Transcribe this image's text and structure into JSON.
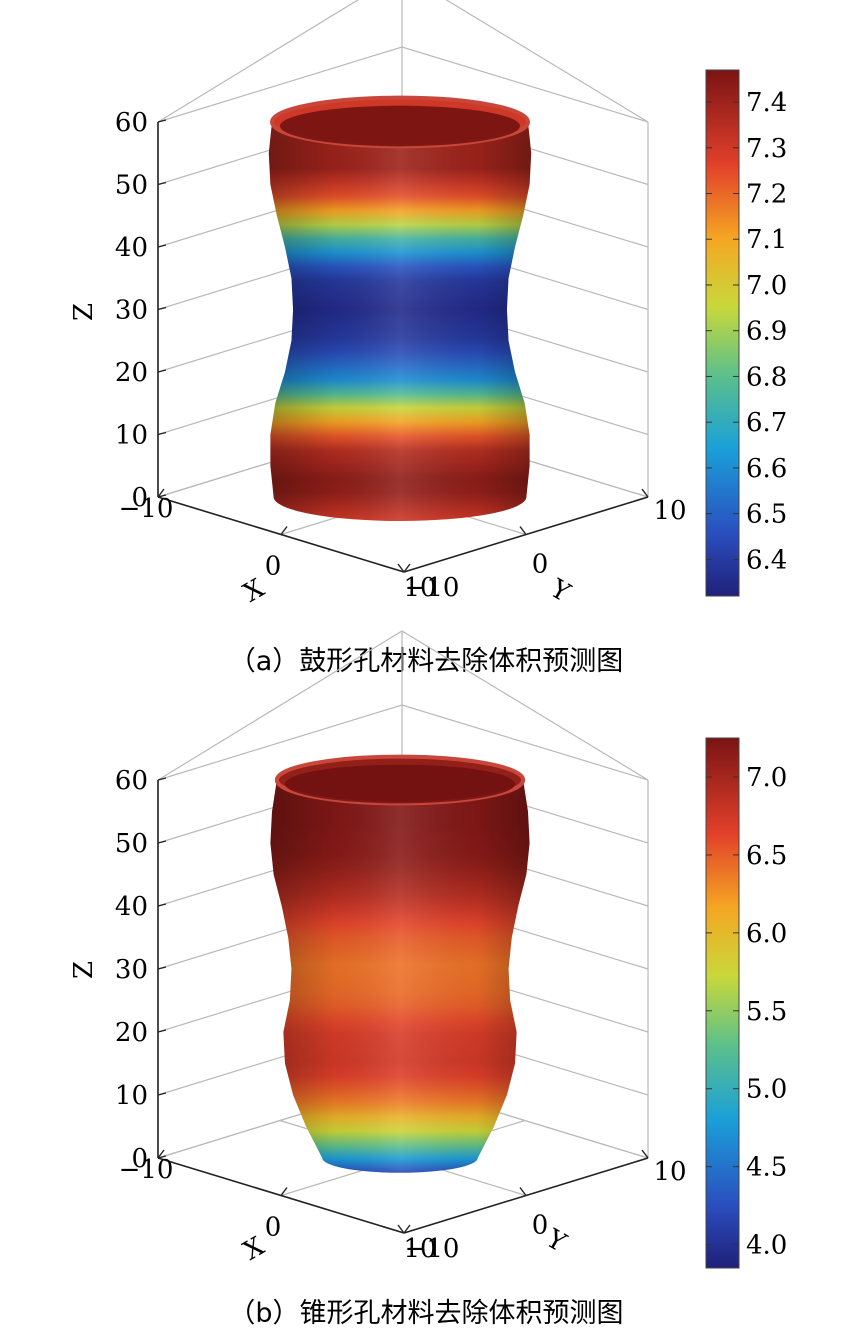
{
  "chart_data": [
    {
      "type": "surface3d",
      "caption": "（a）鼓形孔材料去除体积预测图",
      "zlabel": "Z",
      "xlabel": "X",
      "ylabel": "Y",
      "zticks": [
        "0",
        "10",
        "20",
        "30",
        "40",
        "50",
        "60"
      ],
      "xticks": [
        "−10",
        "0",
        "10"
      ],
      "yticks": [
        "−10",
        "0",
        "10"
      ],
      "zlim": [
        0,
        60
      ],
      "xlim": [
        -10,
        10
      ],
      "ylim": [
        -10,
        10
      ],
      "colorbar": {
        "ticks": [
          "6.4",
          "6.5",
          "6.6",
          "6.7",
          "6.8",
          "6.9",
          "7.0",
          "7.1",
          "7.2",
          "7.3",
          "7.4"
        ],
        "range": [
          6.32,
          7.47
        ],
        "colormap": "jet"
      },
      "profile": {
        "z": [
          0,
          5,
          10,
          15,
          20,
          25,
          30,
          35,
          40,
          45,
          50,
          55,
          60
        ],
        "radius": [
          7.8,
          8.0,
          8.0,
          7.7,
          7.1,
          6.7,
          6.6,
          6.7,
          7.1,
          7.6,
          8.0,
          8.1,
          7.9
        ],
        "value": [
          7.3,
          7.45,
          7.35,
          7.05,
          6.6,
          6.4,
          6.35,
          6.4,
          6.75,
          7.2,
          7.4,
          7.4,
          7.3
        ]
      },
      "grid": true
    },
    {
      "type": "surface3d",
      "caption": "（b）锥形孔材料去除体积预测图",
      "zlabel": "Z",
      "xlabel": "X",
      "ylabel": "Y",
      "zticks": [
        "0",
        "10",
        "20",
        "30",
        "40",
        "50",
        "60"
      ],
      "xticks": [
        "−10",
        "0",
        "10"
      ],
      "yticks": [
        "−10",
        "0",
        "10"
      ],
      "zlim": [
        0,
        60
      ],
      "xlim": [
        -10,
        10
      ],
      "ylim": [
        -10,
        10
      ],
      "colorbar": {
        "ticks": [
          "4.0",
          "4.5",
          "5.0",
          "5.5",
          "6.0",
          "6.5",
          "7.0"
        ],
        "range": [
          3.85,
          7.25
        ],
        "colormap": "jet"
      },
      "profile": {
        "z": [
          0,
          5,
          10,
          15,
          20,
          25,
          30,
          35,
          40,
          45,
          50,
          55,
          60
        ],
        "radius": [
          4.8,
          5.8,
          6.6,
          7.1,
          7.2,
          6.8,
          6.7,
          6.9,
          7.3,
          7.8,
          8.0,
          7.9,
          7.6
        ],
        "value": [
          4.2,
          5.6,
          6.35,
          6.75,
          6.7,
          6.45,
          6.4,
          6.55,
          6.9,
          7.15,
          7.2,
          7.2,
          7.1
        ]
      },
      "grid": true
    }
  ]
}
